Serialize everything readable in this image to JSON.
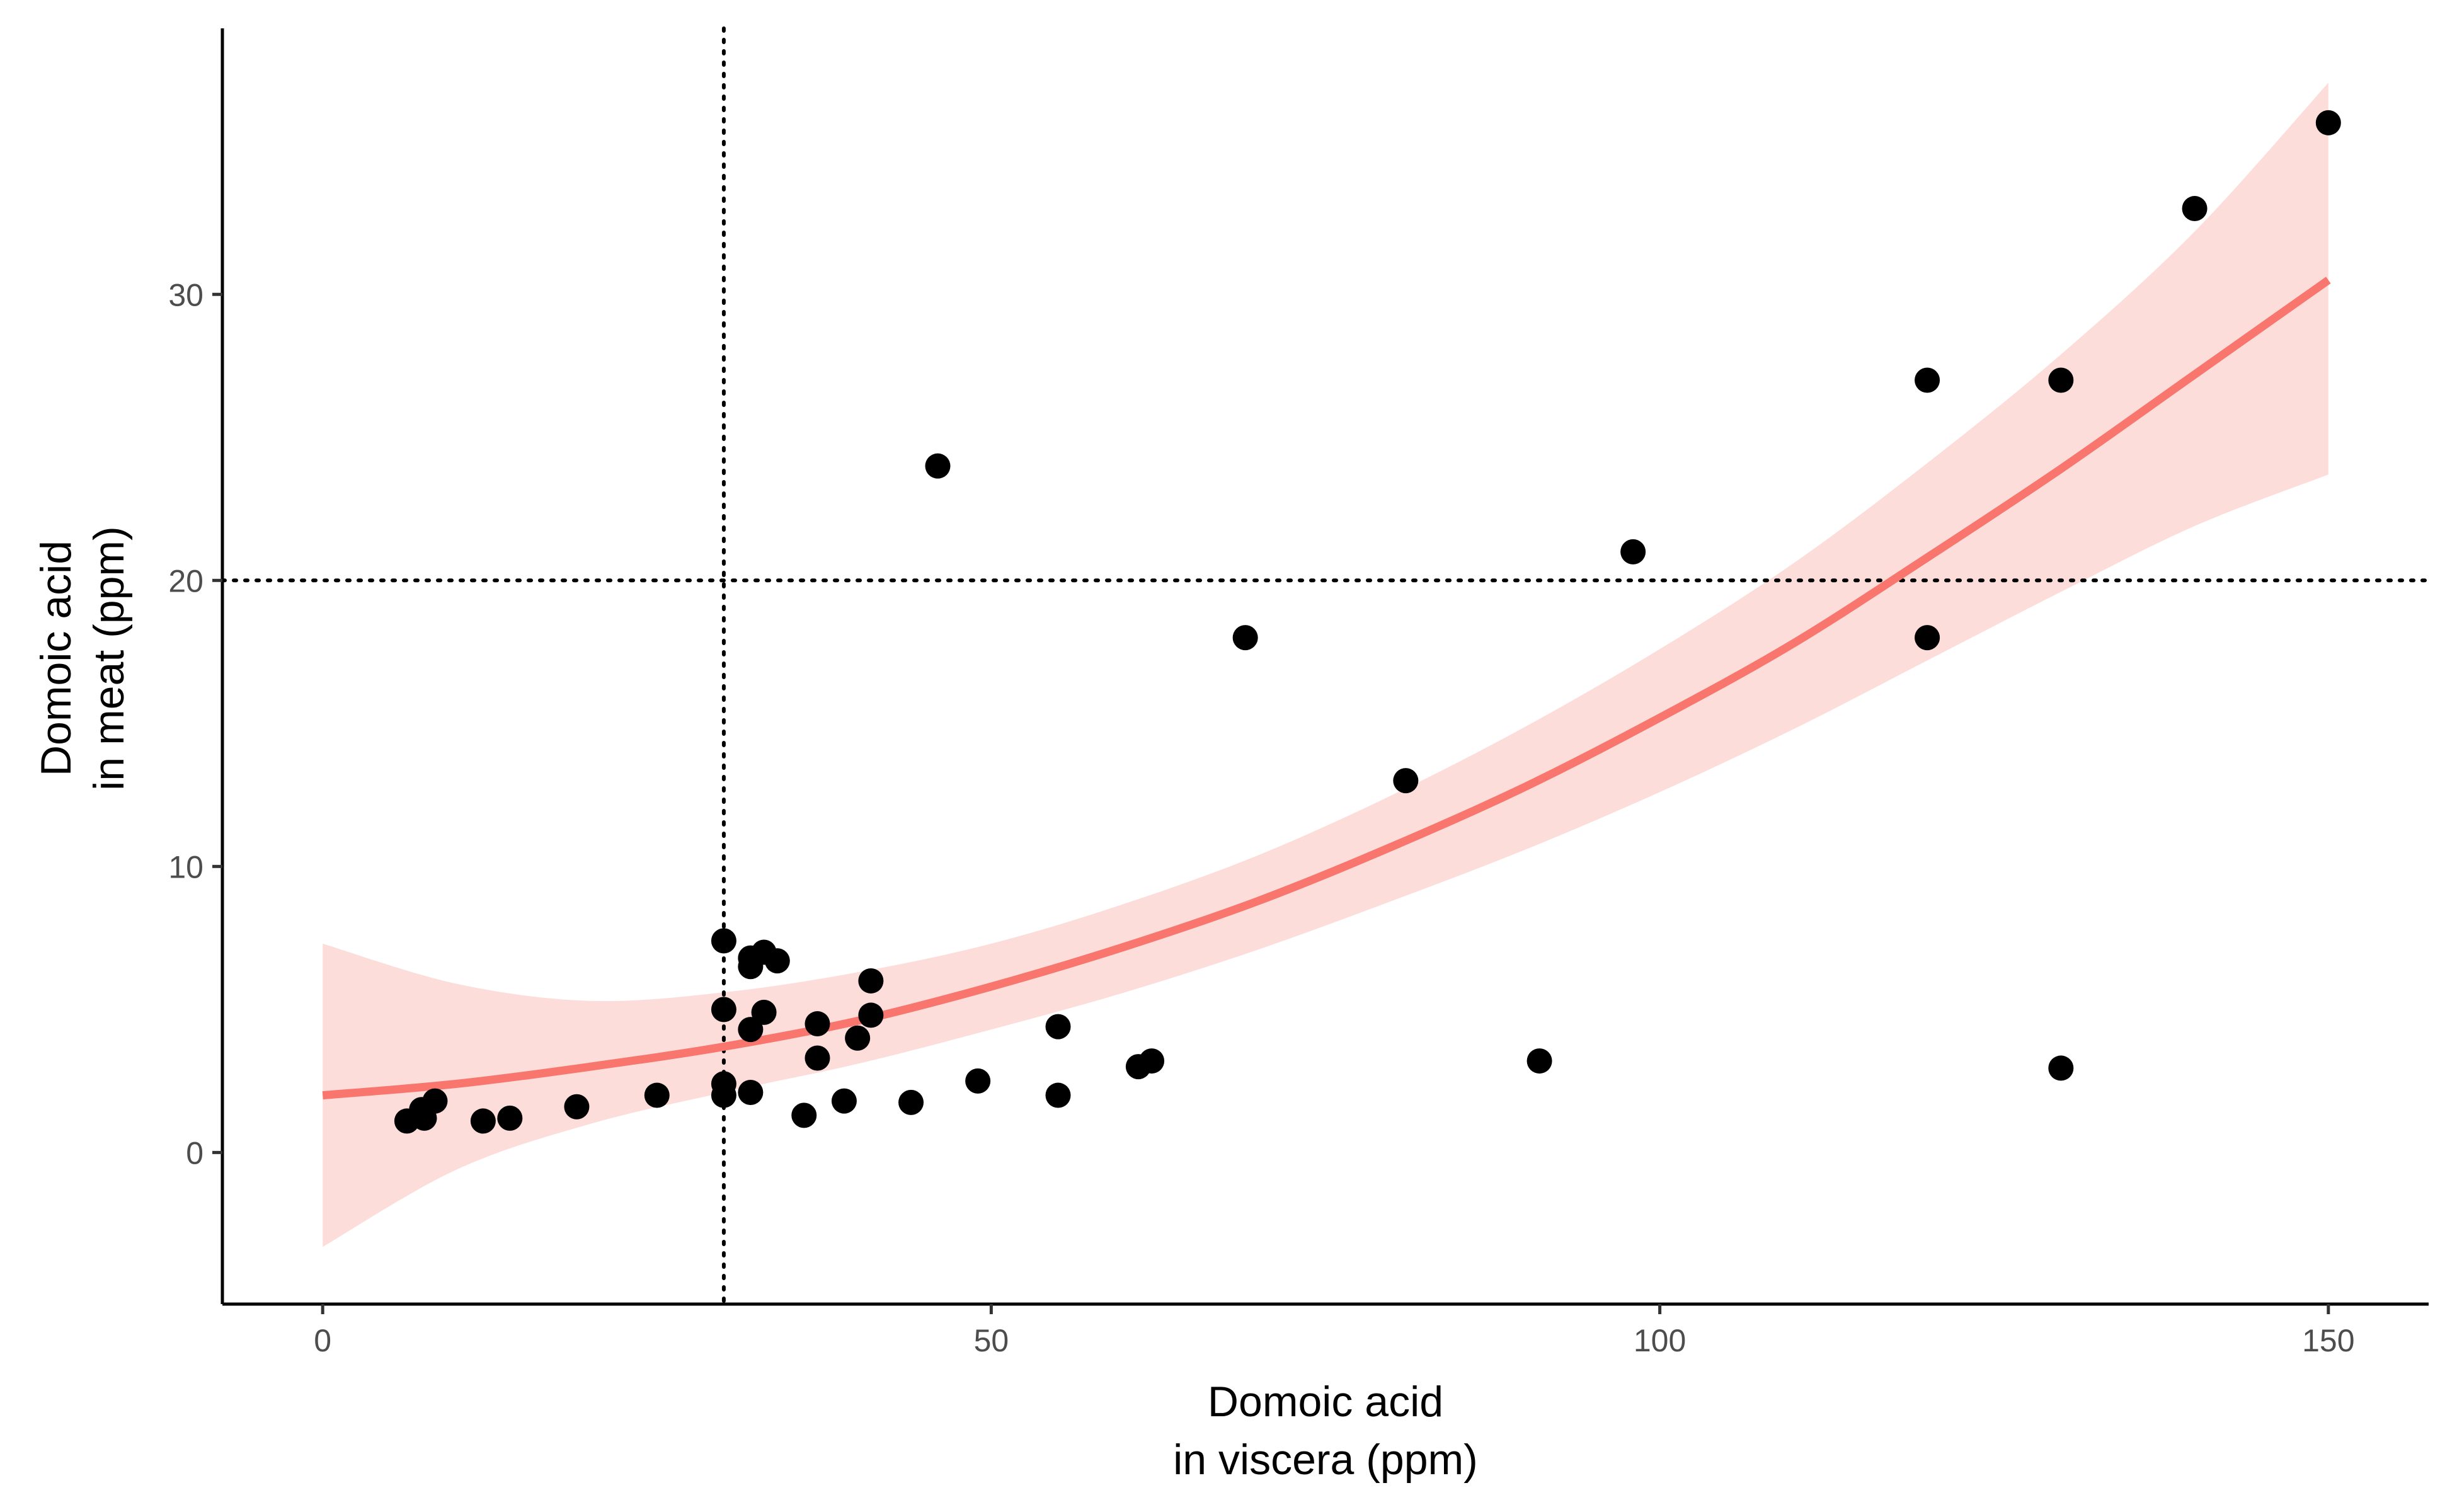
{
  "chart_data": {
    "type": "scatter",
    "title": "",
    "xlabel": [
      "Domoic acid",
      "in viscera (ppm)"
    ],
    "ylabel": [
      "Domoic acid",
      "in meat (ppm)"
    ],
    "xlim": [
      -7.5,
      157.5
    ],
    "ylim": [
      -5.3,
      39.3
    ],
    "x_ticks": [
      0,
      50,
      100,
      150
    ],
    "y_ticks": [
      0,
      10,
      20,
      30
    ],
    "grid": false,
    "legend": "none",
    "reference_lines": {
      "x": 30,
      "y": 20,
      "style": "dotted",
      "color": "#000000"
    },
    "fit": {
      "kind": "quadratic",
      "color": "#F8766D",
      "band_color": "#F8766D",
      "band_opacity": 0.25,
      "x": [
        0,
        10,
        20,
        30,
        40,
        50,
        60,
        70,
        80,
        90,
        100,
        110,
        120,
        130,
        140,
        150
      ],
      "y": [
        2.0,
        2.4,
        3.0,
        3.7,
        4.6,
        5.8,
        7.2,
        8.8,
        10.7,
        12.8,
        15.2,
        17.8,
        20.8,
        23.9,
        27.2,
        30.5
      ],
      "lower": [
        -3.3,
        -0.6,
        1.0,
        2.1,
        3.1,
        4.3,
        5.6,
        7.1,
        8.8,
        10.6,
        12.6,
        14.8,
        17.2,
        19.6,
        21.9,
        23.7
      ],
      "upper": [
        7.3,
        5.9,
        5.3,
        5.6,
        6.3,
        7.3,
        8.7,
        10.4,
        12.5,
        14.9,
        17.6,
        20.6,
        24.1,
        27.9,
        32.2,
        37.4
      ]
    },
    "points": {
      "color": "#000000",
      "x": [
        6.3,
        7.4,
        7.6,
        8.4,
        12,
        14,
        19,
        25,
        30,
        30,
        30,
        30,
        32,
        32,
        32,
        32,
        33,
        33,
        34,
        36,
        37,
        37,
        39,
        40,
        41,
        41,
        44,
        46,
        49,
        55,
        55,
        61,
        62,
        69,
        81,
        91,
        98,
        120,
        120,
        130,
        130,
        140,
        150
      ],
      "y": [
        1.1,
        1.5,
        1.2,
        1.8,
        1.1,
        1.2,
        1.6,
        2.0,
        2.0,
        2.4,
        5.0,
        7.4,
        2.1,
        4.3,
        6.5,
        6.8,
        4.9,
        7.0,
        6.7,
        1.3,
        3.3,
        4.5,
        1.8,
        4.0,
        4.8,
        6.0,
        1.75,
        24,
        2.5,
        2.0,
        4.4,
        3.0,
        3.2,
        18,
        13,
        3.2,
        21,
        27,
        18,
        27,
        2.95,
        33,
        36
      ]
    }
  }
}
